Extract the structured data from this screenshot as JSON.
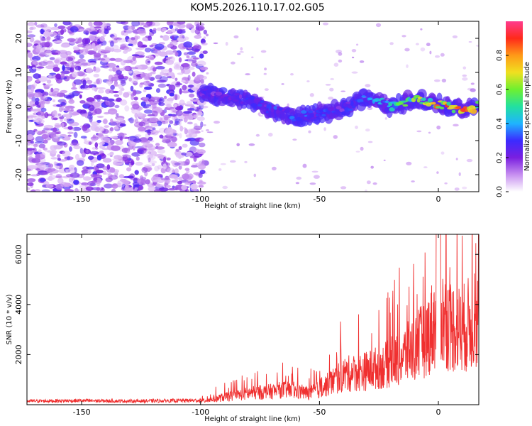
{
  "title": "KOM5.2026.110.17.02.G05",
  "chart_data": [
    {
      "type": "heatmap",
      "title": "KOM5.2026.110.17.02.G05",
      "xlabel": "Height of straight line (km)",
      "ylabel": "Frequency (Hz)",
      "xlim": [
        -173,
        17
      ],
      "ylim": [
        -25,
        25
      ],
      "xticks": [
        -150,
        -100,
        -50,
        0
      ],
      "yticks": [
        -20,
        -10,
        0,
        10,
        20
      ],
      "colorbar": {
        "label": "Normalized spectral amplitude",
        "range": [
          0,
          1
        ],
        "ticks": [
          0.0,
          0.2,
          0.4,
          0.6,
          0.8
        ],
        "tick_labels": [
          "0.0",
          "0.2",
          "0.4",
          "0.6",
          "0.8"
        ],
        "colormap": [
          "#ffffff",
          "#c78ff0",
          "#7a1fe0",
          "#3b2bff",
          "#1fb4ff",
          "#22e0a0",
          "#6ef030",
          "#f0e020",
          "#ff9a18",
          "#ff2a1a",
          "#ff3b8e"
        ]
      },
      "signal_track": {
        "note": "strong coherent track from -100 km to end",
        "x": [
          -100,
          -90,
          -80,
          -70,
          -60,
          -50,
          -40,
          -30,
          -20,
          -10,
          0,
          10,
          17
        ],
        "freq": [
          4,
          3,
          2,
          -1,
          -3,
          -2,
          -1,
          3,
          0,
          2,
          1,
          -1,
          0
        ],
        "amplitude": [
          0.25,
          0.3,
          0.3,
          0.35,
          0.35,
          0.35,
          0.3,
          0.4,
          0.5,
          0.7,
          0.85,
          0.9,
          0.8
        ]
      }
    },
    {
      "type": "line",
      "xlabel": "Height of straight line (km)",
      "ylabel": "SNR (10 * v/v)",
      "xlim": [
        -173,
        17
      ],
      "ylim": [
        0,
        6800
      ],
      "xticks": [
        -150,
        -100,
        -50,
        0
      ],
      "yticks": [
        2000,
        4000,
        6000
      ],
      "series": [
        {
          "name": "SNR",
          "color": "#f03030",
          "x": [
            -173,
            -160,
            -150,
            -140,
            -130,
            -120,
            -110,
            -100,
            -95,
            -90,
            -85,
            -80,
            -75,
            -70,
            -65,
            -60,
            -55,
            -50,
            -45,
            -40,
            -35,
            -30,
            -25,
            -20,
            -15,
            -10,
            -5,
            0,
            5,
            10,
            15,
            17
          ],
          "y": [
            150,
            160,
            170,
            160,
            150,
            160,
            170,
            180,
            300,
            400,
            500,
            600,
            650,
            700,
            800,
            700,
            600,
            800,
            1200,
            1600,
            1700,
            1800,
            2000,
            2200,
            2600,
            3000,
            3600,
            4800,
            4200,
            4000,
            4500,
            4600
          ]
        }
      ]
    }
  ]
}
